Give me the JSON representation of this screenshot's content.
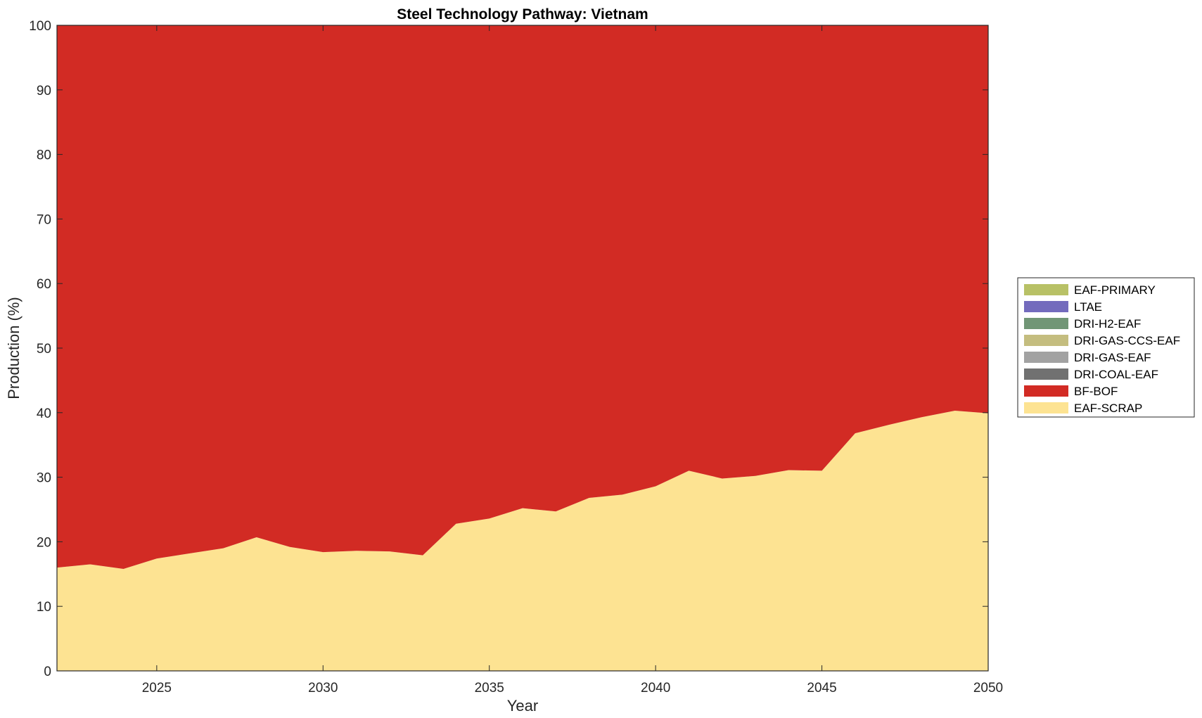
{
  "chart_data": {
    "type": "area",
    "stacked": true,
    "title": "Steel Technology Pathway: Vietnam",
    "xlabel": "Year",
    "ylabel": "Production (%)",
    "xlim": [
      2022,
      2050
    ],
    "ylim": [
      0,
      100
    ],
    "xticks": [
      2025,
      2030,
      2035,
      2040,
      2045,
      2050
    ],
    "yticks": [
      0,
      10,
      20,
      30,
      40,
      50,
      60,
      70,
      80,
      90,
      100
    ],
    "grid": false,
    "legend_position": "right",
    "x": [
      2022,
      2023,
      2024,
      2025,
      2026,
      2027,
      2028,
      2029,
      2030,
      2031,
      2032,
      2033,
      2034,
      2035,
      2036,
      2037,
      2038,
      2039,
      2040,
      2041,
      2042,
      2043,
      2044,
      2045,
      2046,
      2047,
      2048,
      2049,
      2050
    ],
    "series": [
      {
        "name": "EAF-SCRAP",
        "color": "#fde392",
        "values": [
          16.0,
          16.5,
          15.8,
          17.4,
          18.2,
          19.0,
          20.7,
          19.2,
          18.4,
          18.6,
          18.5,
          17.9,
          22.8,
          23.6,
          25.2,
          24.7,
          26.8,
          27.3,
          28.6,
          31.0,
          29.8,
          30.2,
          31.1,
          31.0,
          36.8,
          38.1,
          39.3,
          40.3,
          39.9
        ]
      },
      {
        "name": "BF-BOF",
        "color": "#d22b24",
        "values": [
          84.0,
          83.5,
          84.2,
          82.6,
          81.8,
          81.0,
          79.3,
          80.8,
          81.6,
          81.4,
          81.5,
          82.1,
          77.2,
          76.4,
          74.8,
          75.3,
          73.2,
          72.7,
          71.4,
          69.0,
          70.2,
          69.8,
          68.9,
          69.0,
          63.2,
          61.9,
          60.7,
          59.7,
          60.1
        ]
      },
      {
        "name": "DRI-COAL-EAF",
        "color": "#717171",
        "values": [
          0,
          0,
          0,
          0,
          0,
          0,
          0,
          0,
          0,
          0,
          0,
          0,
          0,
          0,
          0,
          0,
          0,
          0,
          0,
          0,
          0,
          0,
          0,
          0,
          0,
          0,
          0,
          0,
          0
        ]
      },
      {
        "name": "DRI-GAS-EAF",
        "color": "#a2a2a2",
        "values": [
          0,
          0,
          0,
          0,
          0,
          0,
          0,
          0,
          0,
          0,
          0,
          0,
          0,
          0,
          0,
          0,
          0,
          0,
          0,
          0,
          0,
          0,
          0,
          0,
          0,
          0,
          0,
          0,
          0
        ]
      },
      {
        "name": "DRI-GAS-CCS-EAF",
        "color": "#c4bd7f",
        "values": [
          0,
          0,
          0,
          0,
          0,
          0,
          0,
          0,
          0,
          0,
          0,
          0,
          0,
          0,
          0,
          0,
          0,
          0,
          0,
          0,
          0,
          0,
          0,
          0,
          0,
          0,
          0,
          0,
          0
        ]
      },
      {
        "name": "DRI-H2-EAF",
        "color": "#719676",
        "values": [
          0,
          0,
          0,
          0,
          0,
          0,
          0,
          0,
          0,
          0,
          0,
          0,
          0,
          0,
          0,
          0,
          0,
          0,
          0,
          0,
          0,
          0,
          0,
          0,
          0,
          0,
          0,
          0,
          0
        ]
      },
      {
        "name": "LTAE",
        "color": "#736bbd",
        "values": [
          0,
          0,
          0,
          0,
          0,
          0,
          0,
          0,
          0,
          0,
          0,
          0,
          0,
          0,
          0,
          0,
          0,
          0,
          0,
          0,
          0,
          0,
          0,
          0,
          0,
          0,
          0,
          0,
          0
        ]
      },
      {
        "name": "EAF-PRIMARY",
        "color": "#b8c166",
        "values": [
          0,
          0,
          0,
          0,
          0,
          0,
          0,
          0,
          0,
          0,
          0,
          0,
          0,
          0,
          0,
          0,
          0,
          0,
          0,
          0,
          0,
          0,
          0,
          0,
          0,
          0,
          0,
          0,
          0
        ]
      }
    ],
    "legend_order": [
      "EAF-PRIMARY",
      "LTAE",
      "DRI-H2-EAF",
      "DRI-GAS-CCS-EAF",
      "DRI-GAS-EAF",
      "DRI-COAL-EAF",
      "BF-BOF",
      "EAF-SCRAP"
    ]
  }
}
